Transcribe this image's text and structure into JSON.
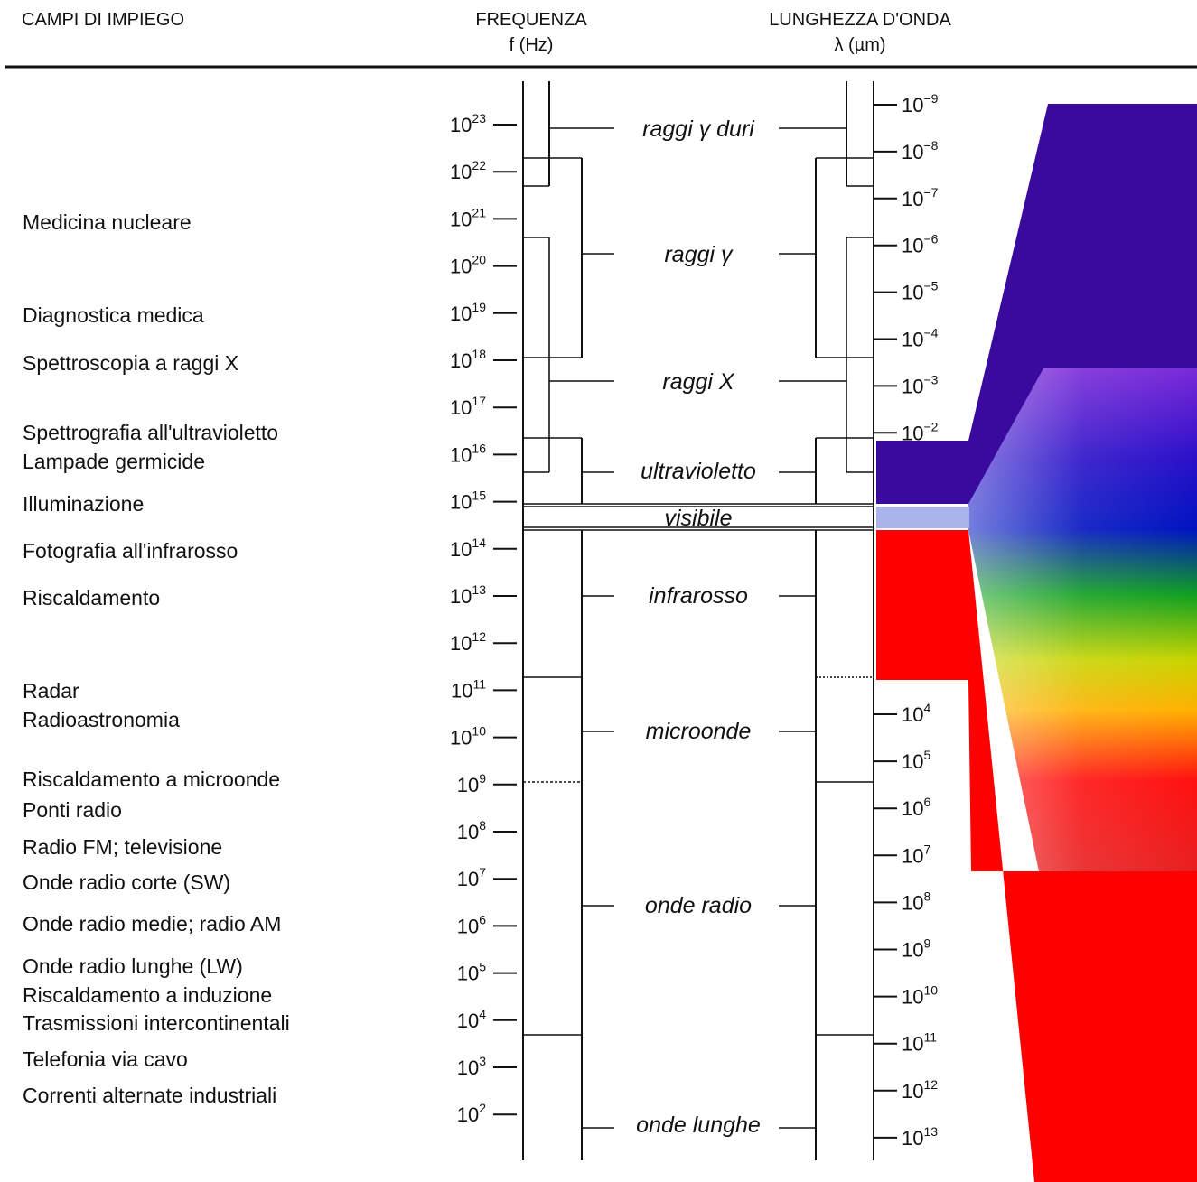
{
  "headers": {
    "applications": "CAMPI DI IMPIEGO",
    "frequency_title": "FREQUENZA",
    "frequency_unit": "f (Hz)",
    "wavelength_title": "LUNGHEZZA D'ONDA",
    "wavelength_unit": "λ (µm)"
  },
  "applications": [
    "Medicina nucleare",
    "Diagnostica medica",
    "Spettroscopia a raggi X",
    "Spettrografia all'ultravioletto",
    "Lampade germicide",
    "Illuminazione",
    "Fotografia all'infrarosso",
    "Riscaldamento",
    "Radar",
    "Radioastronomia",
    "Riscaldamento a microonde",
    "Ponti radio",
    "Radio FM; televisione",
    "Onde radio corte (SW)",
    "Onde radio medie; radio AM",
    "Onde radio lunghe (LW)",
    "Riscaldamento a induzione",
    "Trasmissioni intercontinentali",
    "Telefonia via cavo",
    "Correnti alternate industriali"
  ],
  "frequency_ticks": [
    {
      "base": "10",
      "exp": "23"
    },
    {
      "base": "10",
      "exp": "22"
    },
    {
      "base": "10",
      "exp": "21"
    },
    {
      "base": "10",
      "exp": "20"
    },
    {
      "base": "10",
      "exp": "19"
    },
    {
      "base": "10",
      "exp": "18"
    },
    {
      "base": "10",
      "exp": "17"
    },
    {
      "base": "10",
      "exp": "16"
    },
    {
      "base": "10",
      "exp": "15"
    },
    {
      "base": "10",
      "exp": "14"
    },
    {
      "base": "10",
      "exp": "13"
    },
    {
      "base": "10",
      "exp": "12"
    },
    {
      "base": "10",
      "exp": "11"
    },
    {
      "base": "10",
      "exp": "10"
    },
    {
      "base": "10",
      "exp": "9"
    },
    {
      "base": "10",
      "exp": "8"
    },
    {
      "base": "10",
      "exp": "7"
    },
    {
      "base": "10",
      "exp": "6"
    },
    {
      "base": "10",
      "exp": "5"
    },
    {
      "base": "10",
      "exp": "4"
    },
    {
      "base": "10",
      "exp": "3"
    },
    {
      "base": "10",
      "exp": "2"
    }
  ],
  "wavelength_ticks_short": [
    {
      "base": "10",
      "exp": "−9"
    },
    {
      "base": "10",
      "exp": "−8"
    },
    {
      "base": "10",
      "exp": "−7"
    },
    {
      "base": "10",
      "exp": "−6"
    },
    {
      "base": "10",
      "exp": "−5"
    },
    {
      "base": "10",
      "exp": "−4"
    },
    {
      "base": "10",
      "exp": "−3"
    },
    {
      "base": "10",
      "exp": "−2"
    }
  ],
  "wavelength_ticks_long": [
    {
      "base": "10",
      "exp": "4"
    },
    {
      "base": "10",
      "exp": "5"
    },
    {
      "base": "10",
      "exp": "6"
    },
    {
      "base": "10",
      "exp": "7"
    },
    {
      "base": "10",
      "exp": "8"
    },
    {
      "base": "10",
      "exp": "9"
    },
    {
      "base": "10",
      "exp": "10"
    },
    {
      "base": "10",
      "exp": "11"
    },
    {
      "base": "10",
      "exp": "12"
    },
    {
      "base": "10",
      "exp": "13"
    }
  ],
  "bands": [
    "raggi γ duri",
    "raggi γ",
    "raggi X",
    "ultravioletto",
    "visibile",
    "infrarosso",
    "microonde",
    "onde radio",
    "onde lunghe"
  ],
  "colors": {
    "violet": "#3a0a9e",
    "red": "#ff0000",
    "visible_strip": "#a9b4ea",
    "spectrum": [
      "#8a2be2",
      "#0010c8",
      "#00b000",
      "#ffd400",
      "#ff0000"
    ]
  }
}
